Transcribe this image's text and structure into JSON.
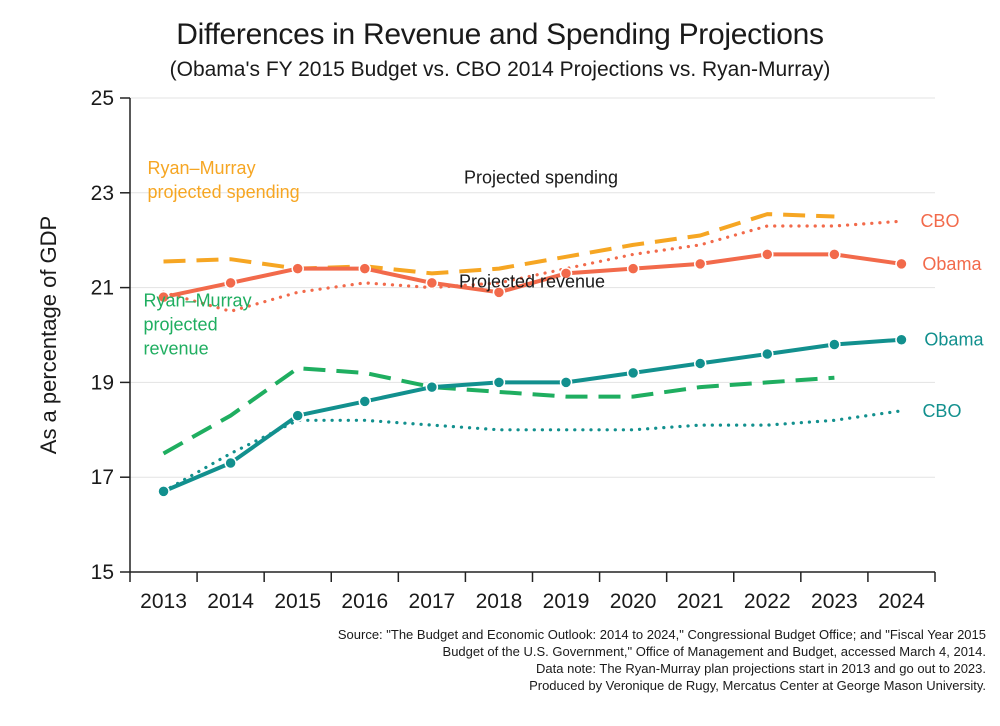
{
  "title": "Differences in Revenue and Spending Projections",
  "subtitle": "(Obama's FY 2015 Budget vs. CBO 2014 Projections vs. Ryan-Murray)",
  "source_lines": [
    "Source: \"The Budget and Economic Outlook: 2014 to 2024,\" Congressional Budget Office; and \"Fiscal Year 2015",
    "Budget of the U.S. Government,\" Office of Management and Budget, accessed March 4, 2014.",
    "Data note: The Ryan-Murray plan projections start in 2013 and go out to 2023.",
    "Produced by Veronique de Rugy, Mercatus Center at George Mason University."
  ],
  "colors": {
    "spending": "#f26a4b",
    "spending_ryan": "#f6a623",
    "revenue": "#12908e",
    "revenue_ryan": "#1fae60",
    "grid": "#e3e3e3",
    "axis": "#222222"
  },
  "chart_data": {
    "type": "line",
    "title": "Differences in Revenue and Spending Projections",
    "subtitle": "(Obama's FY 2015 Budget vs. CBO 2014 Projections vs. Ryan-Murray)",
    "xlabel": "",
    "ylabel": "As a percentage  of GDP",
    "ylim": [
      15,
      25
    ],
    "yticks": [
      15,
      17,
      19,
      21,
      23,
      25
    ],
    "grid": true,
    "categories": [
      "2013",
      "2014",
      "2015",
      "2016",
      "2017",
      "2018",
      "2019",
      "2020",
      "2021",
      "2022",
      "2023",
      "2024"
    ],
    "series": [
      {
        "key": "spend_obama",
        "name": "Obama",
        "group": "spending",
        "style": "solid-marker",
        "color": "#f26a4b",
        "values": [
          20.8,
          21.1,
          21.4,
          21.4,
          21.1,
          20.9,
          21.3,
          21.4,
          21.5,
          21.7,
          21.7,
          21.5
        ]
      },
      {
        "key": "spend_cbo",
        "name": "CBO",
        "group": "spending",
        "style": "dotted",
        "color": "#f26a4b",
        "values": [
          20.9,
          20.5,
          20.9,
          21.1,
          21.0,
          21.1,
          21.4,
          21.7,
          21.9,
          22.3,
          22.3,
          22.4
        ]
      },
      {
        "key": "spend_ryan",
        "name": "Ryan–Murray projected spending",
        "group": "spending",
        "style": "dashed",
        "color": "#f6a623",
        "values": [
          21.55,
          21.6,
          21.4,
          21.45,
          21.3,
          21.4,
          21.65,
          21.9,
          22.1,
          22.55,
          22.5,
          null
        ]
      },
      {
        "key": "rev_obama",
        "name": "Obama",
        "group": "revenue",
        "style": "solid-marker",
        "color": "#12908e",
        "values": [
          16.7,
          17.3,
          18.3,
          18.6,
          18.9,
          19.0,
          19.0,
          19.2,
          19.4,
          19.6,
          19.8,
          19.9
        ]
      },
      {
        "key": "rev_cbo",
        "name": "CBO",
        "group": "revenue",
        "style": "dotted",
        "color": "#12908e",
        "values": [
          16.7,
          17.5,
          18.2,
          18.2,
          18.1,
          18.0,
          18.0,
          18.0,
          18.1,
          18.1,
          18.2,
          18.4
        ]
      },
      {
        "key": "rev_ryan",
        "name": "Ryan–Murray projected revenue",
        "group": "revenue",
        "style": "dashed",
        "color": "#1fae60",
        "values": [
          17.5,
          18.3,
          19.3,
          19.2,
          18.9,
          18.8,
          18.7,
          18.7,
          18.9,
          19.0,
          19.1,
          null
        ]
      }
    ],
    "annotations": [
      {
        "key": "lbl_projected_spending",
        "text": "Projected spending",
        "color": "#1a1a1a",
        "anchor": "start",
        "x": "2018",
        "y": 23.2,
        "lines": [
          "Projected spending"
        ]
      },
      {
        "key": "lbl_projected_revenue",
        "text": "Projected revenue",
        "color": "#1a1a1a",
        "anchor": "start",
        "x": "2018",
        "y": 21.0,
        "lines": [
          "Projected revenue"
        ]
      },
      {
        "key": "lbl_ryan_spending",
        "text": "Ryan–Murray projected spending",
        "color": "#f6a623",
        "anchor": "start",
        "x": "2013",
        "y": 23.4,
        "lines": [
          "Ryan–Murray",
          "projected spending"
        ]
      },
      {
        "key": "lbl_ryan_revenue",
        "text": "Ryan–Murray projected revenue",
        "color": "#1fae60",
        "anchor": "start",
        "x": "2013",
        "y": 20.6,
        "lines": [
          "Ryan–Murray",
          "projected",
          "revenue"
        ]
      },
      {
        "key": "lbl_spend_cbo",
        "text": "CBO",
        "color": "#f26a4b",
        "anchor": "end",
        "x": "2024",
        "y": 22.4,
        "lines": [
          "CBO"
        ]
      },
      {
        "key": "lbl_spend_obama",
        "text": "Obama",
        "color": "#f26a4b",
        "anchor": "end",
        "x": "2024",
        "y": 21.5,
        "lines": [
          "Obama"
        ]
      },
      {
        "key": "lbl_rev_obama",
        "text": "Obama",
        "color": "#12908e",
        "anchor": "end",
        "x": "2024",
        "y": 19.9,
        "lines": [
          "Obama"
        ]
      },
      {
        "key": "lbl_rev_cbo",
        "text": "CBO",
        "color": "#12908e",
        "anchor": "end",
        "x": "2024",
        "y": 18.4,
        "lines": [
          "CBO"
        ]
      }
    ]
  }
}
